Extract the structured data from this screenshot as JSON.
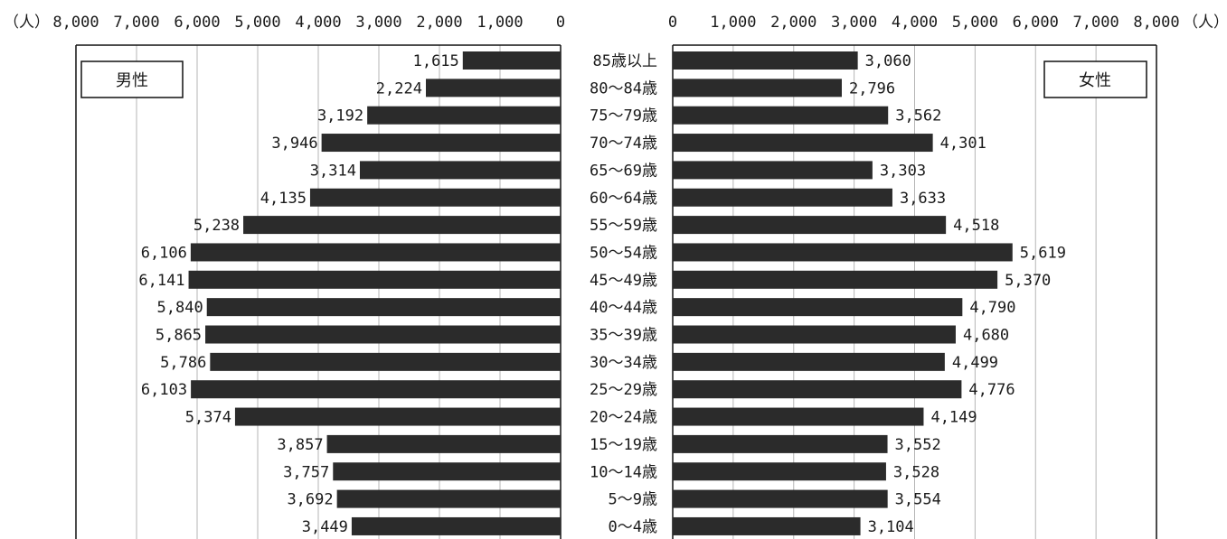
{
  "chart_data": {
    "type": "bar",
    "unit_label": "（人）",
    "categories": [
      "85歳以上",
      "80～84歳",
      "75～79歳",
      "70～74歳",
      "65～69歳",
      "60～64歳",
      "55～59歳",
      "50～54歳",
      "45～49歳",
      "40～44歳",
      "35～39歳",
      "30～34歳",
      "25～29歳",
      "20～24歳",
      "15～19歳",
      "10～14歳",
      "5～9歳",
      "0～4歳"
    ],
    "series": [
      {
        "name": "男性",
        "values": [
          1615,
          2224,
          3192,
          3946,
          3314,
          4135,
          5238,
          6106,
          6141,
          5840,
          5865,
          5786,
          6103,
          5374,
          3857,
          3757,
          3692,
          3449
        ],
        "labels": [
          "1,615",
          "2,224",
          "3,192",
          "3,946",
          "3,314",
          "4,135",
          "5,238",
          "6,106",
          "6,141",
          "5,840",
          "5,865",
          "5,786",
          "6,103",
          "5,374",
          "3,857",
          "3,757",
          "3,692",
          "3,449"
        ]
      },
      {
        "name": "女性",
        "values": [
          3060,
          2796,
          3562,
          4301,
          3303,
          3633,
          4518,
          5619,
          5370,
          4790,
          4680,
          4499,
          4776,
          4149,
          3552,
          3528,
          3554,
          3104
        ],
        "labels": [
          "3,060",
          "2,796",
          "3,562",
          "4,301",
          "3,303",
          "3,633",
          "4,518",
          "5,619",
          "5,370",
          "4,790",
          "4,680",
          "4,499",
          "4,776",
          "4,149",
          "3,552",
          "3,528",
          "3,554",
          "3,104"
        ]
      }
    ],
    "xlim": [
      0,
      8000
    ],
    "ticks": [
      0,
      1000,
      2000,
      3000,
      4000,
      5000,
      6000,
      7000,
      8000
    ],
    "tick_labels": [
      "0",
      "1,000",
      "2,000",
      "3,000",
      "4,000",
      "5,000",
      "6,000",
      "7,000",
      "8,000"
    ],
    "grid": true,
    "bar_color": "#2b2b2b"
  }
}
